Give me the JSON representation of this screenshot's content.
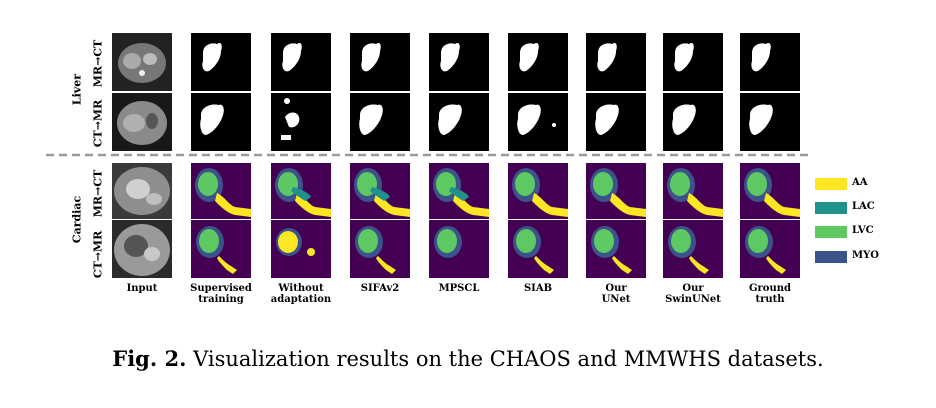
{
  "figure": {
    "sections": [
      {
        "label": "Liver",
        "rows": [
          "MR→CT",
          "CT→MR"
        ]
      },
      {
        "label": "Cardiac",
        "rows": [
          "MR→CT",
          "CT→MR"
        ]
      }
    ],
    "columns": [
      {
        "line1": "Input",
        "line2": ""
      },
      {
        "line1": "Supervised",
        "line2": "training"
      },
      {
        "line1": "Without",
        "line2": "adaptation"
      },
      {
        "line1": "SIFAv2",
        "line2": ""
      },
      {
        "line1": "MPSCL",
        "line2": ""
      },
      {
        "line1": "SIAB",
        "line2": ""
      },
      {
        "line1": "Our",
        "line2": "UNet"
      },
      {
        "line1": "Our",
        "line2": "SwinUNet"
      },
      {
        "line1": "Ground",
        "line2": "truth"
      }
    ],
    "legend": [
      {
        "label": "AA",
        "color": "#fde725"
      },
      {
        "label": "LAC",
        "color": "#21918c"
      },
      {
        "label": "LVC",
        "color": "#5ec962"
      },
      {
        "label": "MYO",
        "color": "#3b528b"
      }
    ],
    "colors": {
      "background_cardiac": "#440154",
      "liver_background": "#000000",
      "liver_mask": "#ffffff"
    }
  },
  "caption": {
    "label": "Fig. 2.",
    "text": "Visualization results on the CHAOS and MMWHS datasets."
  }
}
